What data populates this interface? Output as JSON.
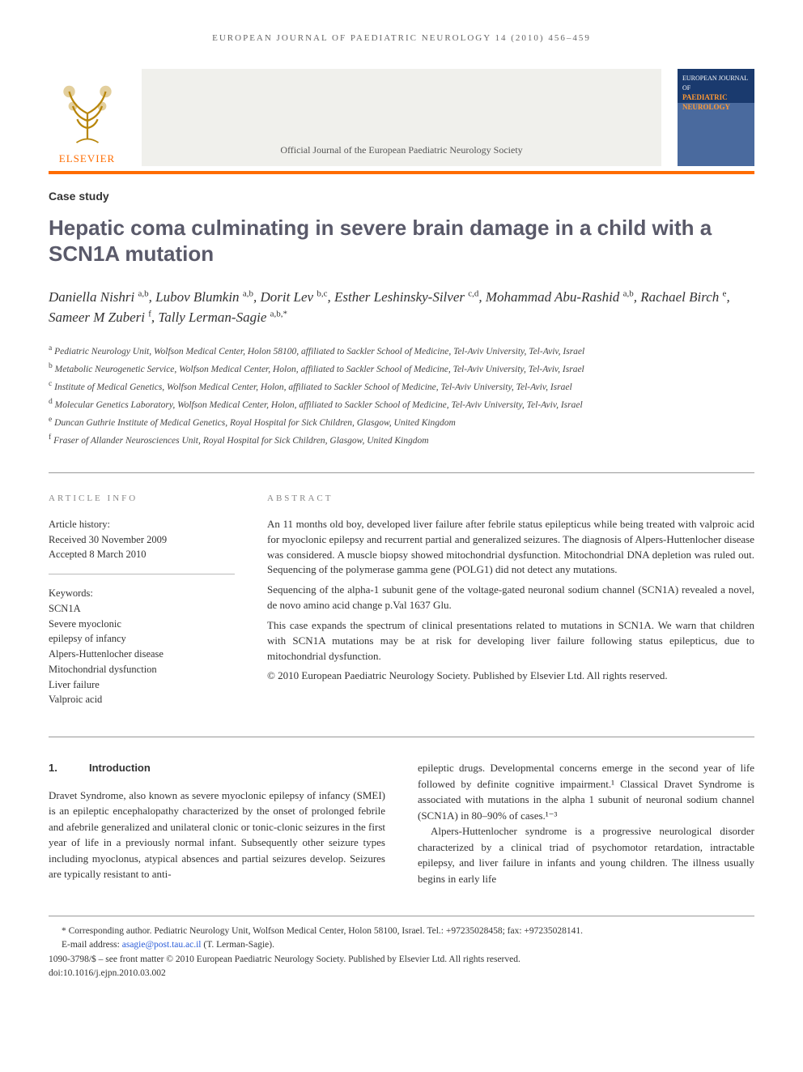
{
  "running_head": "european journal of paediatric neurology 14 (2010) 456–459",
  "publisher_logo_text": "ELSEVIER",
  "banner_subtitle": "Official Journal of the European Paediatric Neurology Society",
  "journal_cover": {
    "line1": "EUROPEAN JOURNAL OF",
    "line2": "PAEDIATRIC NEUROLOGY"
  },
  "article_type": "Case study",
  "title": "Hepatic coma culminating in severe brain damage in a child with a SCN1A mutation",
  "authors_html": "Daniella Nishri <sup>a,b</sup>, Lubov Blumkin <sup>a,b</sup>, Dorit Lev <sup>b,c</sup>, Esther Leshinsky-Silver <sup>c,d</sup>, Mohammad Abu-Rashid <sup>a,b</sup>, Rachael Birch <sup>e</sup>, Sameer M Zuberi <sup>f</sup>, Tally Lerman-Sagie <sup>a,b,*</sup>",
  "affiliations": [
    "a|Pediatric Neurology Unit, Wolfson Medical Center, Holon 58100, affiliated to Sackler School of Medicine, Tel-Aviv University, Tel-Aviv, Israel",
    "b|Metabolic Neurogenetic Service, Wolfson Medical Center, Holon, affiliated to Sackler School of Medicine, Tel-Aviv University, Tel-Aviv, Israel",
    "c|Institute of Medical Genetics, Wolfson Medical Center, Holon, affiliated to Sackler School of Medicine, Tel-Aviv University, Tel-Aviv, Israel",
    "d|Molecular Genetics Laboratory, Wolfson Medical Center, Holon, affiliated to Sackler School of Medicine, Tel-Aviv University, Tel-Aviv, Israel",
    "e|Duncan Guthrie Institute of Medical Genetics, Royal Hospital for Sick Children, Glasgow, United Kingdom",
    "f|Fraser of Allander Neurosciences Unit, Royal Hospital for Sick Children, Glasgow, United Kingdom"
  ],
  "info_label": "ARTICLE INFO",
  "abstract_label": "ABSTRACT",
  "history": {
    "heading": "Article history:",
    "received": "Received 30 November 2009",
    "accepted": "Accepted 8 March 2010"
  },
  "keywords": {
    "heading": "Keywords:",
    "items": [
      "SCN1A",
      "Severe myoclonic",
      "epilepsy of infancy",
      "Alpers-Huttenlocher disease",
      "Mitochondrial dysfunction",
      "Liver failure",
      "Valproic acid"
    ]
  },
  "abstract": {
    "p1": "An 11 months old boy, developed liver failure after febrile status epilepticus while being treated with valproic acid for myoclonic epilepsy and recurrent partial and generalized seizures. The diagnosis of Alpers-Huttenlocher disease was considered. A muscle biopsy showed mitochondrial dysfunction. Mitochondrial DNA depletion was ruled out. Sequencing of the polymerase gamma gene (POLG1) did not detect any mutations.",
    "p2": "Sequencing of the alpha-1 subunit gene of the voltage-gated neuronal sodium channel (SCN1A) revealed a novel, de novo amino acid change p.Val 1637 Glu.",
    "p3": "This case expands the spectrum of clinical presentations related to mutations in SCN1A. We warn that children with SCN1A mutations may be at risk for developing liver failure following status epilepticus, due to mitochondrial dysfunction.",
    "copyright": "© 2010 European Paediatric Neurology Society. Published by Elsevier Ltd. All rights reserved."
  },
  "body": {
    "section_num": "1.",
    "section_title": "Introduction",
    "col1": "Dravet Syndrome, also known as severe myoclonic epilepsy of infancy (SMEI) is an epileptic encephalopathy characterized by the onset of prolonged febrile and afebrile generalized and unilateral clonic or tonic-clonic seizures in the first year of life in a previously normal infant. Subsequently other seizure types including myoclonus, atypical absences and partial seizures develop. Seizures are typically resistant to anti-",
    "col2a": "epileptic drugs. Developmental concerns emerge in the second year of life followed by definite cognitive impairment.¹ Classical Dravet Syndrome is associated with mutations in the alpha 1 subunit of neuronal sodium channel (SCN1A) in 80–90% of cases.¹⁻³",
    "col2b": "Alpers-Huttenlocher syndrome is a progressive neurological disorder characterized by a clinical triad of psychomotor retardation, intractable epilepsy, and liver failure in infants and young children. The illness usually begins in early life"
  },
  "footer": {
    "corresponding": "* Corresponding author. Pediatric Neurology Unit, Wolfson Medical Center, Holon 58100, Israel. Tel.: +97235028458; fax: +97235028141.",
    "email_label": "E-mail address: ",
    "email": "asagie@post.tau.ac.il",
    "email_suffix": " (T. Lerman-Sagie).",
    "issn_line": "1090-3798/$ – see front matter © 2010 European Paediatric Neurology Society. Published by Elsevier Ltd. All rights reserved.",
    "doi": "doi:10.1016/j.ejpn.2010.03.002"
  },
  "colors": {
    "accent_orange": "#ff6c00",
    "title_gray": "#5a5a6a",
    "link_blue": "#2a5cd8"
  }
}
